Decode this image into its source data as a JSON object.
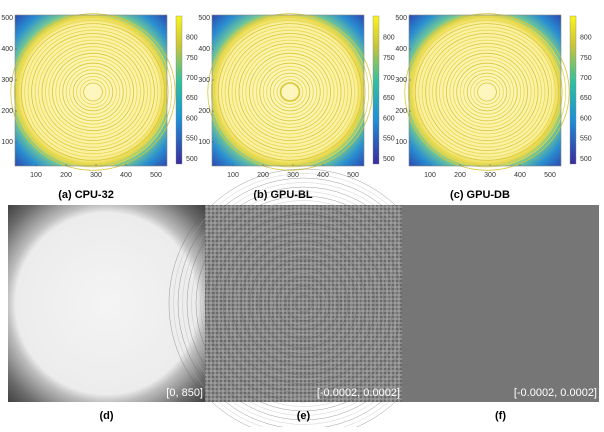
{
  "panels": [
    {
      "caption": "(a) CPU-32",
      "xticks": [
        100,
        200,
        300,
        400,
        500
      ],
      "yticks": [
        100,
        200,
        300,
        400,
        500
      ],
      "colorbar_ticks": [
        500,
        550,
        600,
        650,
        700,
        750,
        800
      ]
    },
    {
      "caption": "(b) GPU-BL",
      "xticks": [
        100,
        200,
        300,
        400,
        500
      ],
      "yticks": [
        100,
        200,
        300,
        400,
        500
      ],
      "colorbar_ticks": [
        500,
        550,
        600,
        650,
        700,
        750,
        800
      ]
    },
    {
      "caption": "(c) GPU-DB",
      "xticks": [
        100,
        200,
        300,
        400,
        500
      ],
      "yticks": [
        100,
        200,
        300,
        400,
        500
      ],
      "colorbar_ticks": [
        500,
        550,
        600,
        650,
        700,
        750,
        800
      ]
    }
  ],
  "images": [
    {
      "caption": "(d)",
      "range_label": "[0, 850]"
    },
    {
      "caption": "(e)",
      "range_label": "[-0.0002, 0.0002]"
    },
    {
      "caption": "(f)",
      "range_label": "[-0.0002, 0.0002]"
    }
  ]
}
